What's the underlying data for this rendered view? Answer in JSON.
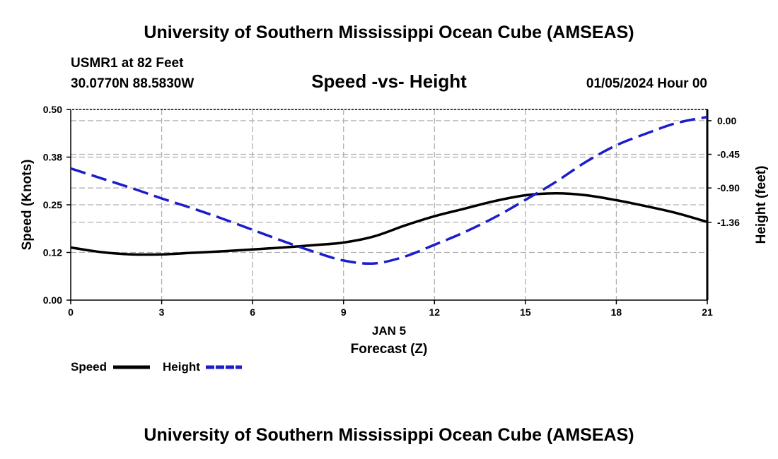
{
  "header": {
    "title": "University of Southern Mississippi Ocean Cube (AMSEAS)",
    "station": "USMR1 at 82 Feet",
    "location": "30.0770N  88.5830W",
    "datetime": "01/05/2024 Hour 00"
  },
  "footer": {
    "title": "University of Southern Mississippi Ocean Cube (AMSEAS)"
  },
  "chart_data": {
    "type": "line",
    "title": "Speed -vs- Height",
    "xlabel": "Forecast (Z)",
    "xdate": "JAN 5",
    "ylabel": "Speed (Knots)",
    "y2label": "Height (feet)",
    "xlim": [
      0,
      21
    ],
    "ylim": [
      0,
      0.5
    ],
    "y2lim": [
      -2.4,
      0.15
    ],
    "x_ticks": [
      0,
      3,
      6,
      9,
      12,
      15,
      18,
      21
    ],
    "x_tick_labels": [
      "0",
      "3",
      "6",
      "9",
      "12",
      "15",
      "18",
      "21"
    ],
    "y_ticks": [
      0,
      0.125,
      0.25,
      0.375,
      0.5
    ],
    "y_tick_labels": [
      "0.00",
      "0.12",
      "0.25",
      "0.38",
      "0.50"
    ],
    "y2_ticks": [
      0.0,
      -0.45,
      -0.9,
      -1.36
    ],
    "y2_tick_labels": [
      "0.00",
      "-0.45",
      "-0.90",
      "-1.36"
    ],
    "grid": true,
    "legend_position": "bottom-left",
    "series": [
      {
        "name": "Speed",
        "axis": "left",
        "color": "#000000",
        "dash": "solid",
        "x": [
          0,
          1,
          2,
          3,
          4,
          5,
          6,
          7,
          8,
          9,
          10,
          11,
          12,
          13,
          14,
          15,
          16,
          17,
          18,
          19,
          20,
          21
        ],
        "values": [
          0.138,
          0.126,
          0.12,
          0.12,
          0.124,
          0.128,
          0.133,
          0.138,
          0.144,
          0.151,
          0.167,
          0.195,
          0.22,
          0.24,
          0.26,
          0.275,
          0.28,
          0.275,
          0.262,
          0.246,
          0.228,
          0.205
        ]
      },
      {
        "name": "Height",
        "axis": "right",
        "color": "#1c1ccc",
        "dash": "dashed",
        "x": [
          0,
          1,
          2,
          3,
          4,
          5,
          6,
          7,
          8,
          9,
          10,
          11,
          12,
          13,
          14,
          15,
          16,
          17,
          18,
          19,
          20,
          21
        ],
        "values": [
          -0.64,
          -0.77,
          -0.9,
          -1.04,
          -1.17,
          -1.31,
          -1.46,
          -1.61,
          -1.75,
          -1.87,
          -1.91,
          -1.82,
          -1.66,
          -1.49,
          -1.29,
          -1.06,
          -0.82,
          -0.55,
          -0.33,
          -0.17,
          -0.03,
          0.05
        ]
      }
    ]
  }
}
